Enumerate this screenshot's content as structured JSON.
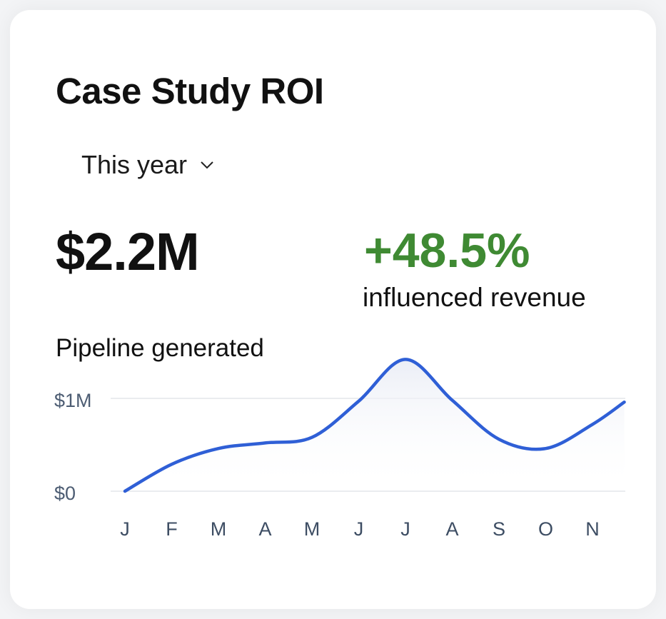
{
  "card": {
    "title": "Case Study ROI",
    "period_selector": {
      "selected": "This year",
      "icon": "chevron-down-icon"
    },
    "total_value": "$2.2M",
    "growth": {
      "value": "+48.5%",
      "label": "influenced revenue",
      "color": "#3f8a33"
    }
  },
  "chart_data": {
    "type": "line",
    "title": "Pipeline generated",
    "categories": [
      "J",
      "F",
      "M",
      "A",
      "M",
      "J",
      "J",
      "A",
      "S",
      "O",
      "N"
    ],
    "points": [
      {
        "x": 0,
        "y": 0
      },
      {
        "x": 1,
        "y": 0.29
      },
      {
        "x": 2,
        "y": 0.46
      },
      {
        "x": 3,
        "y": 0.52
      },
      {
        "x": 4,
        "y": 0.58
      },
      {
        "x": 5,
        "y": 0.97
      },
      {
        "x": 6,
        "y": 1.42
      },
      {
        "x": 7,
        "y": 0.98
      },
      {
        "x": 8,
        "y": 0.56
      },
      {
        "x": 9,
        "y": 0.46
      },
      {
        "x": 10,
        "y": 0.72
      },
      {
        "x": 10.68,
        "y": 0.96
      }
    ],
    "y_ticks": [
      {
        "value": 0,
        "label": "$0"
      },
      {
        "value": 1,
        "label": "$1M"
      }
    ],
    "ylabel": "",
    "xlabel": "",
    "ylim": [
      0,
      1.5
    ],
    "grid": true,
    "line_color": "#2f5fd6"
  }
}
